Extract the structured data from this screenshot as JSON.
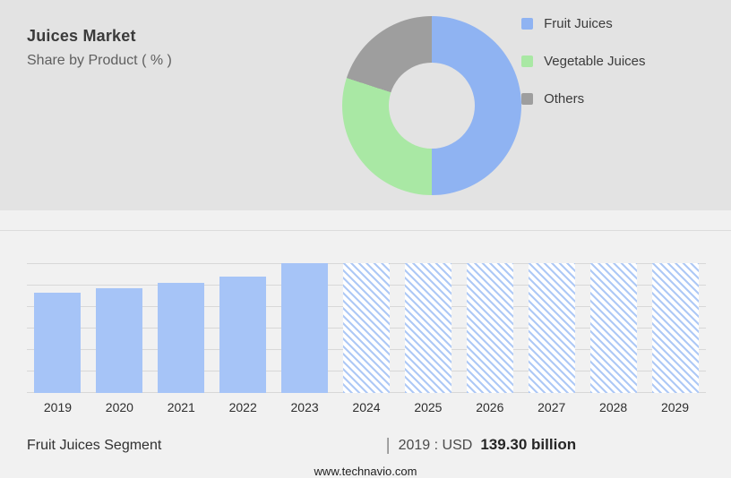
{
  "header": {
    "title": "Juices Market",
    "subtitle": "Share by Product ( % )"
  },
  "legend": [
    {
      "label": "Fruit Juices",
      "color": "#8fb3f2"
    },
    {
      "label": "Vegetable Juices",
      "color": "#a9e8a4"
    },
    {
      "label": "Others",
      "color": "#9e9e9e"
    }
  ],
  "chart_data": [
    {
      "id": "product-share-donut",
      "type": "pie",
      "donut": true,
      "title": "Share by Product ( % )",
      "labels": [
        "Fruit Juices",
        "Vegetable Juices",
        "Others"
      ],
      "values": [
        50,
        30,
        20
      ],
      "colors": [
        "#8fb3f2",
        "#a9e8a4",
        "#9e9e9e"
      ],
      "legend_position": "right"
    },
    {
      "id": "market-size-bars",
      "type": "bar",
      "categories": [
        "2019",
        "2020",
        "2021",
        "2022",
        "2023",
        "2024",
        "2025",
        "2026",
        "2027",
        "2028",
        "2029"
      ],
      "values": [
        77,
        81,
        85,
        90,
        100,
        100,
        100,
        100,
        100,
        100,
        100
      ],
      "forecast_from_index": 5,
      "bar_color": "#a6c4f7",
      "grid": true,
      "ylim": [
        0,
        100
      ]
    }
  ],
  "footer": {
    "segment_label": "Fruit Juices Segment",
    "divider": "|",
    "value_prefix": "2019 : USD",
    "value_bold": "139.30 billion",
    "website": "www.technavio.com"
  }
}
